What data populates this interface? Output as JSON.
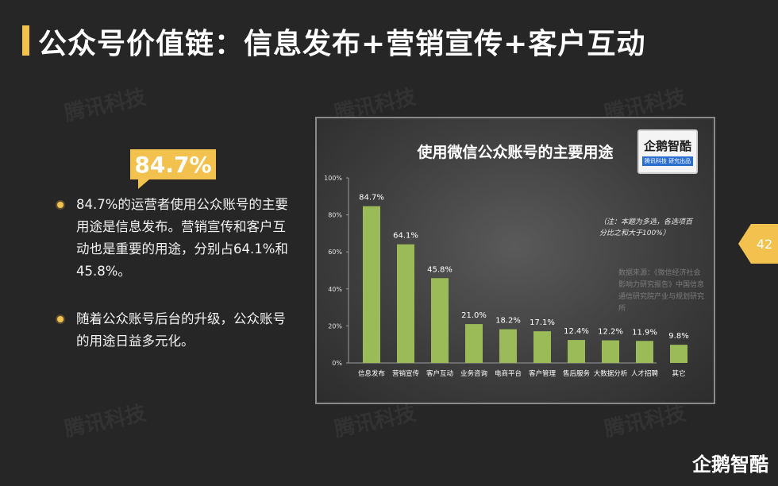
{
  "slide": {
    "title": "公众号价值链：信息发布+营销宣传+客户互动",
    "badge": "84.7%",
    "bullets": [
      "84.7%的运营者使用公众账号的主要用途是信息发布。营销宣传和客户互动也是重要的用途，分别占64.1%和45.8%。",
      "随着公众账号后台的升级，公众账号的用途日益多元化。"
    ],
    "page_number": "42",
    "footer_logo": "企鹅智酷",
    "watermark": "腾讯科技"
  },
  "chart_logo": {
    "name": "企鹅智酷",
    "sub": "腾讯科技 研究出品"
  },
  "chart_data": {
    "type": "bar",
    "title": "使用微信公众账号的主要用途",
    "categories": [
      "信息发布",
      "营销宣传",
      "客户互动",
      "业务咨询",
      "电商平台",
      "客户管理",
      "售后服务",
      "大数据分析",
      "人才招聘",
      "其它"
    ],
    "values": [
      84.7,
      64.1,
      45.8,
      21.0,
      18.2,
      17.1,
      12.4,
      12.2,
      11.9,
      9.8
    ],
    "value_labels": [
      "84.7%",
      "64.1%",
      "45.8%",
      "21.0%",
      "18.2%",
      "17.1%",
      "12.4%",
      "12.2%",
      "11.9%",
      "9.8%"
    ],
    "ylim": [
      0,
      100
    ],
    "yticks": [
      "0%",
      "20%",
      "40%",
      "60%",
      "80%",
      "100%"
    ],
    "bar_color": "#9bbb59",
    "grid": false,
    "note": "（注：本题为多选，各选项百分比之和大于100%）",
    "source": "数据来源：《微信经济社会影响力研究报告》中国信息通信研究院产业与规划研究所"
  }
}
